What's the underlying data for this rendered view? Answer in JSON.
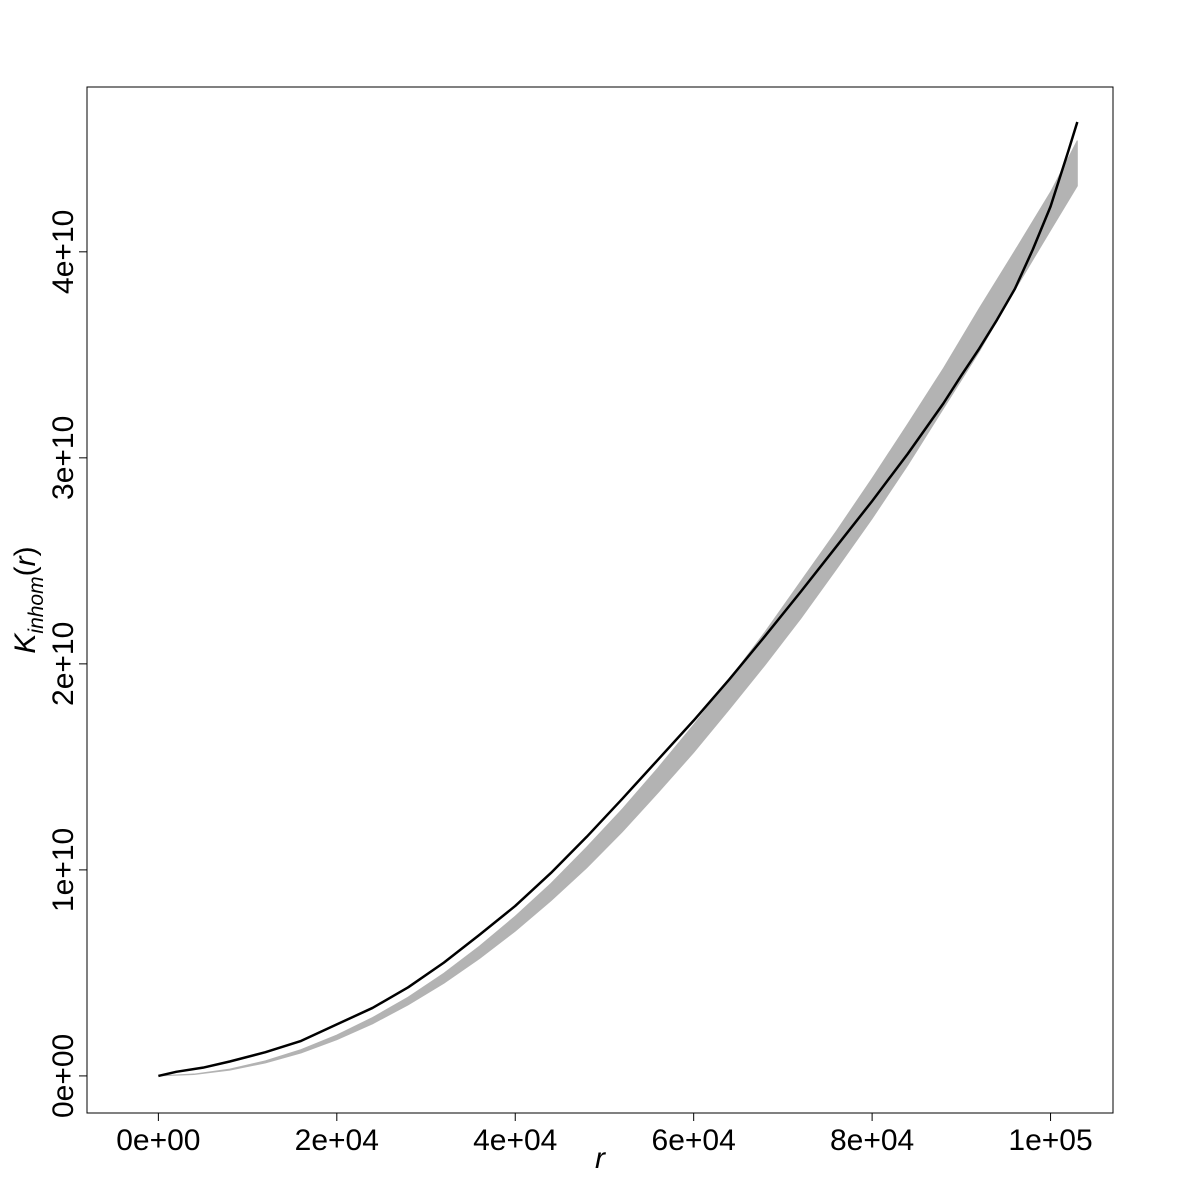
{
  "chart_data": {
    "type": "line",
    "title": "",
    "xlabel": "r",
    "ylabel": {
      "base": "K",
      "subscript": "inhom",
      "open_paren": "(",
      "arg": "r",
      "close_paren": ")"
    },
    "xlim": [
      -8000,
      107000
    ],
    "ylim": [
      -1800000000,
      48000000000
    ],
    "x_ticks": [
      {
        "value": 0,
        "label": "0e+00"
      },
      {
        "value": 20000,
        "label": "2e+04"
      },
      {
        "value": 40000,
        "label": "4e+04"
      },
      {
        "value": 60000,
        "label": "6e+04"
      },
      {
        "value": 80000,
        "label": "8e+04"
      },
      {
        "value": 100000,
        "label": "1e+05"
      }
    ],
    "y_ticks": [
      {
        "value": 0,
        "label": "0e+00"
      },
      {
        "value": 10000000000,
        "label": "1e+10"
      },
      {
        "value": 20000000000,
        "label": "2e+10"
      },
      {
        "value": 30000000000,
        "label": "3e+10"
      },
      {
        "value": 40000000000,
        "label": "4e+10"
      }
    ],
    "grid": false,
    "legend": "none",
    "series": [
      {
        "kind": "line",
        "color": "#000000",
        "points": [
          [
            0,
            0
          ],
          [
            2000,
            200000000
          ],
          [
            5000,
            400000000
          ],
          [
            8000,
            700000000
          ],
          [
            12000,
            1150000000
          ],
          [
            16000,
            1700000000
          ],
          [
            20000,
            2500000000
          ],
          [
            24000,
            3300000000
          ],
          [
            28000,
            4300000000
          ],
          [
            32000,
            5500000000
          ],
          [
            36000,
            6850000000
          ],
          [
            40000,
            8250000000
          ],
          [
            44000,
            9850000000
          ],
          [
            48000,
            11600000000
          ],
          [
            52000,
            13450000000
          ],
          [
            56000,
            15350000000
          ],
          [
            60000,
            17250000000
          ],
          [
            64000,
            19250000000
          ],
          [
            68000,
            21350000000
          ],
          [
            72000,
            23500000000
          ],
          [
            76000,
            25700000000
          ],
          [
            80000,
            27900000000
          ],
          [
            84000,
            30200000000
          ],
          [
            88000,
            32650000000
          ],
          [
            90000,
            34000000000
          ],
          [
            92000,
            35300000000
          ],
          [
            94000,
            36700000000
          ],
          [
            96000,
            38200000000
          ],
          [
            98000,
            40100000000
          ],
          [
            100000,
            42200000000
          ],
          [
            102000,
            44900000000
          ],
          [
            103000,
            46300000000
          ]
        ]
      },
      {
        "kind": "envelope",
        "color": "#b3b3b3",
        "x": [
          0,
          4000,
          8000,
          12000,
          16000,
          20000,
          24000,
          28000,
          32000,
          36000,
          40000,
          44000,
          48000,
          52000,
          56000,
          60000,
          64000,
          68000,
          72000,
          76000,
          80000,
          84000,
          88000,
          92000,
          96000,
          100000,
          103000
        ],
        "upper": [
          0,
          90000000,
          330000000,
          730000000,
          1280000000,
          1980000000,
          2830000000,
          3820000000,
          4980000000,
          6300000000,
          7750000000,
          9340000000,
          11100000000,
          12950000000,
          14950000000,
          17050000000,
          19250000000,
          21550000000,
          24000000000,
          26450000000,
          29000000000,
          31650000000,
          34350000000,
          37250000000,
          40050000000,
          42900000000,
          45400000000
        ],
        "lower": [
          0,
          70000000,
          280000000,
          630000000,
          1120000000,
          1760000000,
          2530000000,
          3450000000,
          4500000000,
          5700000000,
          7030000000,
          8500000000,
          10100000000,
          11850000000,
          13750000000,
          15700000000,
          17800000000,
          19950000000,
          22200000000,
          24600000000,
          27050000000,
          29650000000,
          32400000000,
          35150000000,
          38150000000,
          41050000000,
          43200000000
        ]
      }
    ]
  }
}
